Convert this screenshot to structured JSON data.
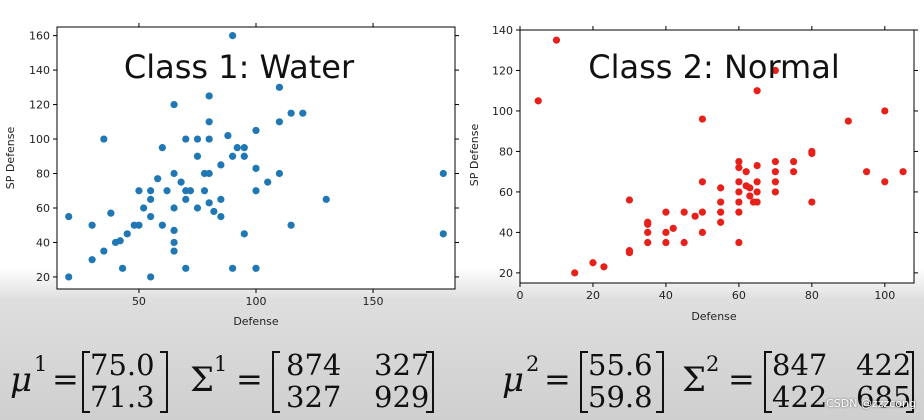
{
  "chart_data": [
    {
      "type": "scatter",
      "title": "Class 1: Water",
      "xlabel": "Defense",
      "ylabel": "SP Defense",
      "xlim": [
        15,
        185
      ],
      "ylim": [
        13,
        165
      ],
      "xticks": [
        50,
        100,
        150
      ],
      "yticks": [
        20,
        40,
        60,
        80,
        100,
        120,
        140,
        160
      ],
      "color": "#1f77b4",
      "grid": false,
      "points": [
        [
          20,
          55
        ],
        [
          20,
          20
        ],
        [
          30,
          50
        ],
        [
          30,
          30
        ],
        [
          35,
          100
        ],
        [
          35,
          35
        ],
        [
          38,
          57
        ],
        [
          40,
          40
        ],
        [
          42,
          41
        ],
        [
          43,
          25
        ],
        [
          45,
          45
        ],
        [
          48,
          50
        ],
        [
          50,
          70
        ],
        [
          50,
          50
        ],
        [
          52,
          60
        ],
        [
          55,
          55
        ],
        [
          55,
          65
        ],
        [
          55,
          70
        ],
        [
          55,
          20
        ],
        [
          58,
          77
        ],
        [
          60,
          95
        ],
        [
          60,
          50
        ],
        [
          62,
          70
        ],
        [
          65,
          120
        ],
        [
          65,
          80
        ],
        [
          65,
          60
        ],
        [
          65,
          47
        ],
        [
          65,
          40
        ],
        [
          65,
          35
        ],
        [
          68,
          75
        ],
        [
          70,
          100
        ],
        [
          70,
          70
        ],
        [
          70,
          65
        ],
        [
          70,
          25
        ],
        [
          72,
          70
        ],
        [
          75,
          100
        ],
        [
          75,
          90
        ],
        [
          75,
          60
        ],
        [
          78,
          80
        ],
        [
          78,
          70
        ],
        [
          80,
          125
        ],
        [
          80,
          110
        ],
        [
          80,
          100
        ],
        [
          80,
          80
        ],
        [
          80,
          63
        ],
        [
          82,
          58
        ],
        [
          85,
          85
        ],
        [
          85,
          65
        ],
        [
          85,
          55
        ],
        [
          88,
          102
        ],
        [
          90,
          160
        ],
        [
          90,
          90
        ],
        [
          90,
          25
        ],
        [
          92,
          95
        ],
        [
          95,
          95
        ],
        [
          95,
          90
        ],
        [
          95,
          45
        ],
        [
          100,
          105
        ],
        [
          100,
          83
        ],
        [
          100,
          70
        ],
        [
          100,
          25
        ],
        [
          105,
          75
        ],
        [
          110,
          130
        ],
        [
          110,
          110
        ],
        [
          110,
          80
        ],
        [
          115,
          115
        ],
        [
          115,
          50
        ],
        [
          120,
          115
        ],
        [
          130,
          65
        ],
        [
          180,
          80
        ],
        [
          180,
          45
        ]
      ]
    },
    {
      "type": "scatter",
      "title": "Class 2: Normal",
      "xlabel": "Defense",
      "ylabel": "SP Defense",
      "xlim": [
        0,
        108
      ],
      "ylim": [
        15,
        140
      ],
      "xticks": [
        0,
        20,
        40,
        60,
        80,
        100
      ],
      "yticks": [
        20,
        40,
        60,
        80,
        100,
        120,
        140
      ],
      "color": "#e8201a",
      "grid": false,
      "points": [
        [
          5,
          105
        ],
        [
          10,
          135
        ],
        [
          15,
          20
        ],
        [
          20,
          25
        ],
        [
          23,
          23
        ],
        [
          30,
          56
        ],
        [
          30,
          31
        ],
        [
          30,
          30
        ],
        [
          35,
          45
        ],
        [
          35,
          44
        ],
        [
          35,
          40
        ],
        [
          35,
          35
        ],
        [
          40,
          50
        ],
        [
          40,
          40
        ],
        [
          40,
          35
        ],
        [
          42,
          42
        ],
        [
          45,
          50
        ],
        [
          45,
          35
        ],
        [
          48,
          48
        ],
        [
          50,
          96
        ],
        [
          50,
          65
        ],
        [
          50,
          50
        ],
        [
          50,
          40
        ],
        [
          55,
          62
        ],
        [
          55,
          55
        ],
        [
          55,
          50
        ],
        [
          55,
          45
        ],
        [
          60,
          75
        ],
        [
          60,
          72
        ],
        [
          60,
          65
        ],
        [
          60,
          60
        ],
        [
          60,
          55
        ],
        [
          60,
          50
        ],
        [
          60,
          35
        ],
        [
          62,
          70
        ],
        [
          62,
          63
        ],
        [
          63,
          62
        ],
        [
          63,
          58
        ],
        [
          64,
          55
        ],
        [
          65,
          110
        ],
        [
          65,
          73
        ],
        [
          65,
          65
        ],
        [
          65,
          60
        ],
        [
          65,
          55
        ],
        [
          70,
          120
        ],
        [
          70,
          75
        ],
        [
          70,
          70
        ],
        [
          70,
          65
        ],
        [
          70,
          60
        ],
        [
          75,
          75
        ],
        [
          75,
          70
        ],
        [
          80,
          80
        ],
        [
          80,
          79
        ],
        [
          80,
          55
        ],
        [
          90,
          95
        ],
        [
          95,
          70
        ],
        [
          100,
          100
        ],
        [
          100,
          65
        ],
        [
          105,
          70
        ]
      ]
    }
  ],
  "formulas": {
    "class1": {
      "mu_symbol": "μ",
      "mu_sup": "1",
      "equals": "=",
      "mu": [
        "75.0",
        "71.3"
      ],
      "sigma_symbol": "Σ",
      "sigma_sup": "1",
      "sigma": [
        [
          "874",
          "327"
        ],
        [
          "327",
          "929"
        ]
      ]
    },
    "class2": {
      "mu_symbol": "μ",
      "mu_sup": "2",
      "equals": "=",
      "mu": [
        "55.6",
        "59.8"
      ],
      "sigma_symbol": "Σ",
      "sigma_sup": "2",
      "sigma": [
        [
          "847",
          "422"
        ],
        [
          "422",
          "685"
        ]
      ]
    }
  },
  "watermark": "CSDN @zzzcong"
}
